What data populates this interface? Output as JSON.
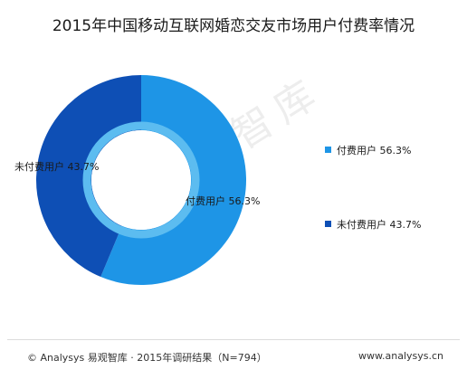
{
  "title": "2015年中国移动互联网婚恋交友市场用户付费率情况",
  "watermark": "易观智库",
  "footer": {
    "source": "© Analysys 易观智库 · 2015年调研结果（N=794）",
    "url": "www.analysys.cn"
  },
  "colors": {
    "paid": "#1e95e6",
    "unpaid": "#0e4fb5",
    "ring_inner": "#5cbcf0"
  },
  "chart_data": {
    "type": "pie",
    "title": "2015年中国移动互联网婚恋交友市场用户付费率情况",
    "legend_position": "right",
    "unit": "%",
    "series": [
      {
        "name": "付费用户",
        "value": 56.3,
        "label": "付费用户 56.3%"
      },
      {
        "name": "未付费用户",
        "value": 43.7,
        "label": "未付费用户 43.7%"
      }
    ]
  }
}
